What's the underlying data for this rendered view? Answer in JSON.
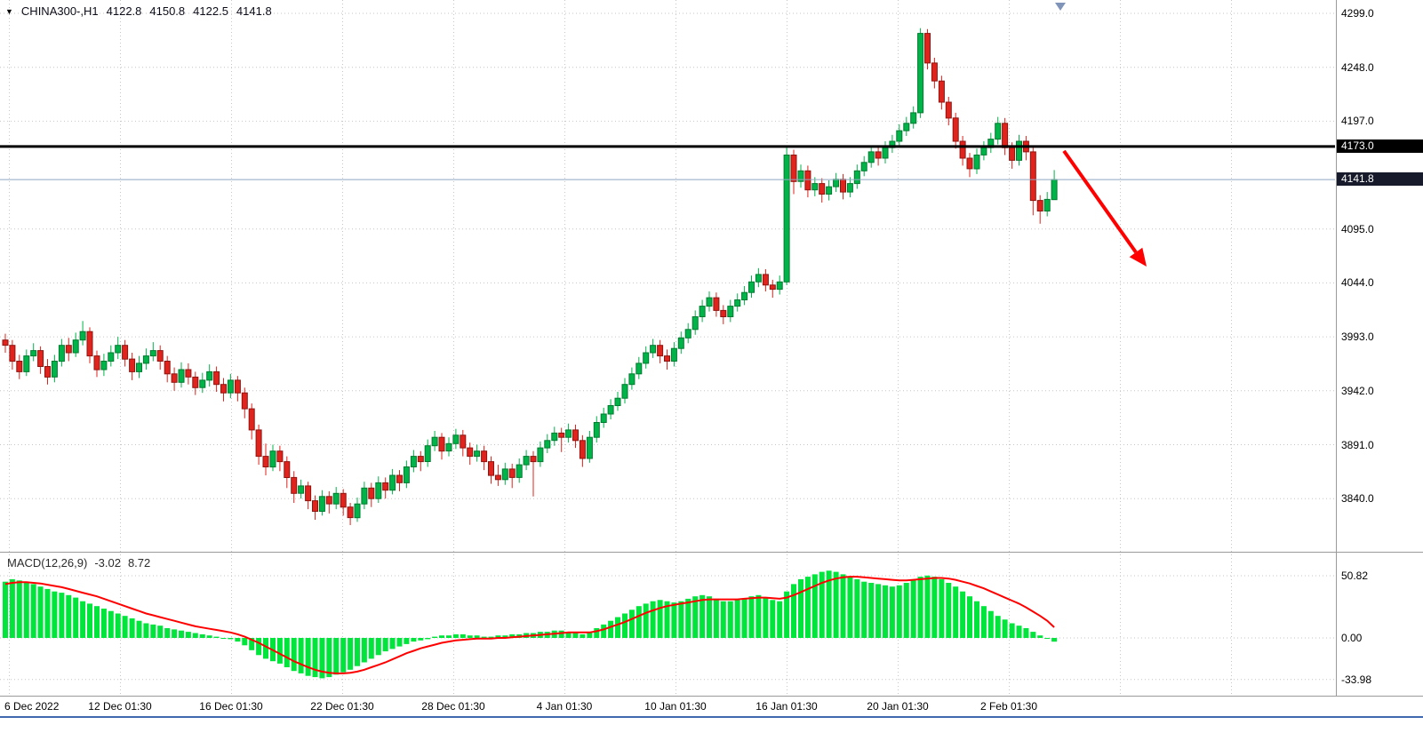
{
  "header": {
    "dropdown_icon": "▼",
    "symbol_period": "CHINA300-,H1",
    "open": "4122.8",
    "high": "4150.8",
    "low": "4122.5",
    "close": "4141.8"
  },
  "macd_panel": {
    "label": "MACD(12,26,9)",
    "value_main": "-3.02",
    "value_signal": "8.72"
  },
  "colors": {
    "up": "#00b44a",
    "up_dark": "#007a2e",
    "down": "#e0231c",
    "down_dark": "#8f1410",
    "macd_hist": "#00e53c",
    "macd_signal": "#ff0000",
    "hline": "#000000",
    "price_line": "#8fa8c0",
    "arrow": "#ff0000",
    "hline_badge": "#000000",
    "price_badge": "#161a2b",
    "bottom_line": "#4068b0"
  },
  "time_axis": {
    "labels": [
      "6 Dec 2022",
      "12 Dec 01:30",
      "16 Dec 01:30",
      "22 Dec 01:30",
      "28 Dec 01:30",
      "4 Jan 01:30",
      "10 Jan 01:30",
      "16 Jan 01:30",
      "20 Jan 01:30",
      "2 Feb 01:30"
    ]
  },
  "chart_data": [
    {
      "type": "candlestick",
      "title": "CHINA300-,H1",
      "timeframe": "H1",
      "last_ohlc": {
        "open": 4122.8,
        "high": 4150.8,
        "low": 4122.5,
        "close": 4141.8
      },
      "yticks": [
        4299.0,
        4248.0,
        4197.0,
        4095.0,
        4044.0,
        3993.0,
        3942.0,
        3891.0,
        3840.0
      ],
      "ylim": [
        3808,
        4310
      ],
      "hline": 4173.0,
      "last_price": 4141.8,
      "annotation": "red down trend arrow from 4173 level",
      "candles": [
        [
          3990,
          3996,
          3978,
          3985
        ],
        [
          3985,
          3990,
          3962,
          3970
        ],
        [
          3970,
          3976,
          3953,
          3960
        ],
        [
          3960,
          3981,
          3956,
          3975
        ],
        [
          3975,
          3987,
          3970,
          3980
        ],
        [
          3980,
          3984,
          3958,
          3965
        ],
        [
          3965,
          3972,
          3948,
          3955
        ],
        [
          3955,
          3976,
          3950,
          3970
        ],
        [
          3970,
          3991,
          3965,
          3985
        ],
        [
          3985,
          3992,
          3970,
          3978
        ],
        [
          3978,
          3997,
          3974,
          3990
        ],
        [
          3990,
          4008,
          3985,
          3998
        ],
        [
          3998,
          4002,
          3968,
          3975
        ],
        [
          3975,
          3980,
          3955,
          3962
        ],
        [
          3962,
          3977,
          3956,
          3970
        ],
        [
          3970,
          3985,
          3965,
          3978
        ],
        [
          3978,
          3993,
          3972,
          3985
        ],
        [
          3985,
          3990,
          3965,
          3972
        ],
        [
          3972,
          3978,
          3952,
          3960
        ],
        [
          3960,
          3975,
          3954,
          3968
        ],
        [
          3968,
          3982,
          3962,
          3975
        ],
        [
          3975,
          3988,
          3970,
          3980
        ],
        [
          3980,
          3985,
          3962,
          3970
        ],
        [
          3970,
          3975,
          3950,
          3958
        ],
        [
          3958,
          3964,
          3942,
          3950
        ],
        [
          3950,
          3969,
          3945,
          3962
        ],
        [
          3962,
          3968,
          3948,
          3955
        ],
        [
          3955,
          3960,
          3938,
          3945
        ],
        [
          3945,
          3959,
          3940,
          3952
        ],
        [
          3952,
          3967,
          3946,
          3960
        ],
        [
          3960,
          3965,
          3941,
          3948
        ],
        [
          3948,
          3954,
          3932,
          3940
        ],
        [
          3940,
          3958,
          3935,
          3952
        ],
        [
          3952,
          3956,
          3932,
          3940
        ],
        [
          3940,
          3945,
          3916,
          3925
        ],
        [
          3925,
          3930,
          3896,
          3905
        ],
        [
          3905,
          3910,
          3872,
          3880
        ],
        [
          3880,
          3892,
          3862,
          3870
        ],
        [
          3870,
          3891,
          3866,
          3885
        ],
        [
          3885,
          3890,
          3866,
          3875
        ],
        [
          3875,
          3880,
          3850,
          3860
        ],
        [
          3860,
          3866,
          3836,
          3845
        ],
        [
          3845,
          3858,
          3840,
          3852
        ],
        [
          3852,
          3856,
          3830,
          3838
        ],
        [
          3838,
          3843,
          3820,
          3828
        ],
        [
          3828,
          3848,
          3824,
          3842
        ],
        [
          3842,
          3847,
          3826,
          3835
        ],
        [
          3835,
          3851,
          3830,
          3845
        ],
        [
          3845,
          3849,
          3824,
          3832
        ],
        [
          3832,
          3836,
          3815,
          3822
        ],
        [
          3822,
          3841,
          3818,
          3835
        ],
        [
          3835,
          3856,
          3830,
          3850
        ],
        [
          3850,
          3855,
          3832,
          3840
        ],
        [
          3840,
          3861,
          3836,
          3855
        ],
        [
          3855,
          3860,
          3840,
          3848
        ],
        [
          3848,
          3868,
          3844,
          3862
        ],
        [
          3862,
          3867,
          3847,
          3855
        ],
        [
          3855,
          3876,
          3850,
          3870
        ],
        [
          3870,
          3886,
          3865,
          3880
        ],
        [
          3880,
          3885,
          3866,
          3875
        ],
        [
          3875,
          3896,
          3870,
          3890
        ],
        [
          3890,
          3904,
          3885,
          3898
        ],
        [
          3898,
          3902,
          3877,
          3885
        ],
        [
          3885,
          3898,
          3880,
          3892
        ],
        [
          3892,
          3906,
          3887,
          3900
        ],
        [
          3900,
          3905,
          3880,
          3888
        ],
        [
          3888,
          3893,
          3872,
          3880
        ],
        [
          3880,
          3891,
          3875,
          3885
        ],
        [
          3885,
          3890,
          3867,
          3875
        ],
        [
          3875,
          3880,
          3854,
          3862
        ],
        [
          3862,
          3872,
          3852,
          3858
        ],
        [
          3858,
          3874,
          3853,
          3868
        ],
        [
          3868,
          3873,
          3850,
          3860
        ],
        [
          3860,
          3878,
          3855,
          3872
        ],
        [
          3872,
          3886,
          3867,
          3880
        ],
        [
          3880,
          3885,
          3842,
          3875
        ],
        [
          3875,
          3894,
          3870,
          3888
        ],
        [
          3888,
          3901,
          3883,
          3895
        ],
        [
          3895,
          3908,
          3890,
          3902
        ],
        [
          3902,
          3907,
          3884,
          3898
        ],
        [
          3898,
          3911,
          3893,
          3905
        ],
        [
          3905,
          3910,
          3888,
          3895
        ],
        [
          3895,
          3900,
          3870,
          3878
        ],
        [
          3878,
          3904,
          3874,
          3898
        ],
        [
          3898,
          3918,
          3893,
          3912
        ],
        [
          3912,
          3926,
          3907,
          3920
        ],
        [
          3920,
          3934,
          3915,
          3928
        ],
        [
          3928,
          3941,
          3923,
          3935
        ],
        [
          3935,
          3954,
          3930,
          3948
        ],
        [
          3948,
          3964,
          3943,
          3958
        ],
        [
          3958,
          3974,
          3953,
          3968
        ],
        [
          3968,
          3984,
          3963,
          3978
        ],
        [
          3978,
          3991,
          3973,
          3985
        ],
        [
          3985,
          3990,
          3968,
          3975
        ],
        [
          3975,
          3981,
          3962,
          3970
        ],
        [
          3970,
          3988,
          3965,
          3982
        ],
        [
          3982,
          3998,
          3977,
          3992
        ],
        [
          3992,
          4006,
          3987,
          4000
        ],
        [
          4000,
          4018,
          3995,
          4012
        ],
        [
          4012,
          4028,
          4007,
          4022
        ],
        [
          4022,
          4036,
          4017,
          4030
        ],
        [
          4030,
          4035,
          4012,
          4018
        ],
        [
          4018,
          4023,
          4005,
          4012
        ],
        [
          4012,
          4028,
          4007,
          4022
        ],
        [
          4022,
          4034,
          4017,
          4028
        ],
        [
          4028,
          4041,
          4023,
          4035
        ],
        [
          4035,
          4051,
          4030,
          4045
        ],
        [
          4045,
          4058,
          4040,
          4052
        ],
        [
          4052,
          4057,
          4036,
          4042
        ],
        [
          4042,
          4047,
          4030,
          4038
        ],
        [
          4038,
          4051,
          4033,
          4045
        ],
        [
          4045,
          4173,
          4042,
          4165
        ],
        [
          4165,
          4170,
          4128,
          4140
        ],
        [
          4140,
          4156,
          4134,
          4150
        ],
        [
          4150,
          4155,
          4125,
          4132
        ],
        [
          4132,
          4144,
          4126,
          4138
        ],
        [
          4138,
          4143,
          4120,
          4128
        ],
        [
          4128,
          4141,
          4122,
          4135
        ],
        [
          4135,
          4148,
          4130,
          4142
        ],
        [
          4142,
          4147,
          4123,
          4130
        ],
        [
          4130,
          4144,
          4125,
          4138
        ],
        [
          4138,
          4156,
          4133,
          4150
        ],
        [
          4150,
          4164,
          4145,
          4158
        ],
        [
          4158,
          4174,
          4153,
          4168
        ],
        [
          4168,
          4173,
          4155,
          4162
        ],
        [
          4162,
          4178,
          4157,
          4172
        ],
        [
          4172,
          4184,
          4167,
          4178
        ],
        [
          4178,
          4194,
          4173,
          4188
        ],
        [
          4188,
          4201,
          4183,
          4195
        ],
        [
          4195,
          4211,
          4190,
          4205
        ],
        [
          4205,
          4285,
          4200,
          4280
        ],
        [
          4280,
          4284,
          4246,
          4252
        ],
        [
          4252,
          4257,
          4228,
          4235
        ],
        [
          4235,
          4240,
          4208,
          4215
        ],
        [
          4215,
          4220,
          4193,
          4200
        ],
        [
          4200,
          4205,
          4171,
          4178
        ],
        [
          4178,
          4183,
          4155,
          4162
        ],
        [
          4162,
          4167,
          4144,
          4152
        ],
        [
          4152,
          4171,
          4147,
          4165
        ],
        [
          4165,
          4178,
          4160,
          4172
        ],
        [
          4172,
          4186,
          4167,
          4180
        ],
        [
          4180,
          4201,
          4175,
          4195
        ],
        [
          4195,
          4200,
          4165,
          4172
        ],
        [
          4172,
          4177,
          4152,
          4160
        ],
        [
          4160,
          4184,
          4155,
          4178
        ],
        [
          4178,
          4183,
          4160,
          4168
        ],
        [
          4168,
          4172,
          4108,
          4122
        ],
        [
          4122,
          4127,
          4100,
          4112
        ],
        [
          4112,
          4130,
          4107,
          4123
        ],
        [
          4122.8,
          4150.8,
          4122.5,
          4141.8
        ]
      ]
    },
    {
      "type": "bar+line",
      "title": "MACD(12,26,9)",
      "yticks": [
        50.82,
        0,
        -33.98
      ],
      "ylim": [
        -40,
        57
      ],
      "last_values": {
        "macd": -3.02,
        "signal": 8.72
      },
      "histogram": [
        46,
        48,
        47,
        45,
        44,
        42,
        40,
        38,
        37,
        35,
        33,
        30,
        28,
        26,
        24,
        22,
        20,
        18,
        16,
        14,
        12,
        11,
        10,
        8,
        7,
        6,
        5,
        4,
        3,
        2,
        1,
        0,
        -1,
        -3,
        -6,
        -10,
        -14,
        -17,
        -19,
        -21,
        -24,
        -27,
        -29,
        -31,
        -32,
        -33,
        -32,
        -30,
        -28,
        -26,
        -23,
        -20,
        -17,
        -14,
        -11,
        -9,
        -7,
        -5,
        -3,
        -2,
        -1,
        1,
        2,
        2,
        3,
        3,
        2,
        2,
        1,
        1,
        2,
        2,
        3,
        3,
        4,
        4,
        5,
        5,
        6,
        6,
        5,
        4,
        3,
        5,
        8,
        11,
        14,
        17,
        20,
        23,
        26,
        28,
        30,
        31,
        30,
        29,
        30,
        32,
        34,
        35,
        34,
        32,
        30,
        30,
        31,
        32,
        34,
        35,
        33,
        31,
        30,
        38,
        44,
        48,
        50,
        52,
        54,
        55,
        54,
        52,
        50,
        48,
        46,
        45,
        44,
        43,
        42,
        43,
        45,
        47,
        50,
        51,
        50,
        48,
        45,
        42,
        38,
        34,
        30,
        26,
        22,
        18,
        15,
        12,
        10,
        8,
        5,
        2,
        0,
        -3.02
      ],
      "signal": [
        44,
        45,
        45.5,
        45.5,
        45,
        44.5,
        43.5,
        42.5,
        41.5,
        40,
        38.5,
        37,
        35.5,
        34,
        32,
        30,
        28,
        26,
        24,
        22,
        20,
        18.5,
        17,
        15.5,
        14,
        12.5,
        11,
        9.5,
        8.5,
        7.5,
        6.5,
        5.5,
        4.5,
        3,
        1,
        -1.5,
        -4,
        -7,
        -10,
        -13,
        -16,
        -19,
        -21.5,
        -24,
        -26,
        -27.5,
        -28.5,
        -29,
        -29,
        -28.5,
        -27.5,
        -26,
        -24,
        -22,
        -20,
        -17.5,
        -15,
        -12.5,
        -10.5,
        -8.5,
        -7,
        -5.5,
        -4,
        -3,
        -2,
        -1.5,
        -1,
        -0.5,
        -0.5,
        -0.5,
        0,
        0,
        0.5,
        1,
        1.5,
        2,
        2.5,
        3,
        3.5,
        4,
        4.5,
        4.5,
        4.5,
        4.5,
        5.5,
        7,
        9,
        11,
        13,
        15.5,
        18,
        20.5,
        22.5,
        24.5,
        26,
        27,
        28,
        29,
        30,
        31,
        31.5,
        31.5,
        31.5,
        31.5,
        31.5,
        32,
        32.5,
        33,
        33,
        32.5,
        32,
        33,
        35,
        37.5,
        40,
        42.5,
        45,
        47,
        48.5,
        49.5,
        50,
        50,
        49.5,
        49,
        48.5,
        48,
        47.5,
        47,
        47,
        47.5,
        48,
        48.5,
        49,
        49,
        48.5,
        47.5,
        46,
        44.5,
        42.5,
        40.5,
        38,
        35.5,
        33,
        30.5,
        28,
        25,
        21.5,
        18,
        14,
        8.72
      ]
    }
  ]
}
